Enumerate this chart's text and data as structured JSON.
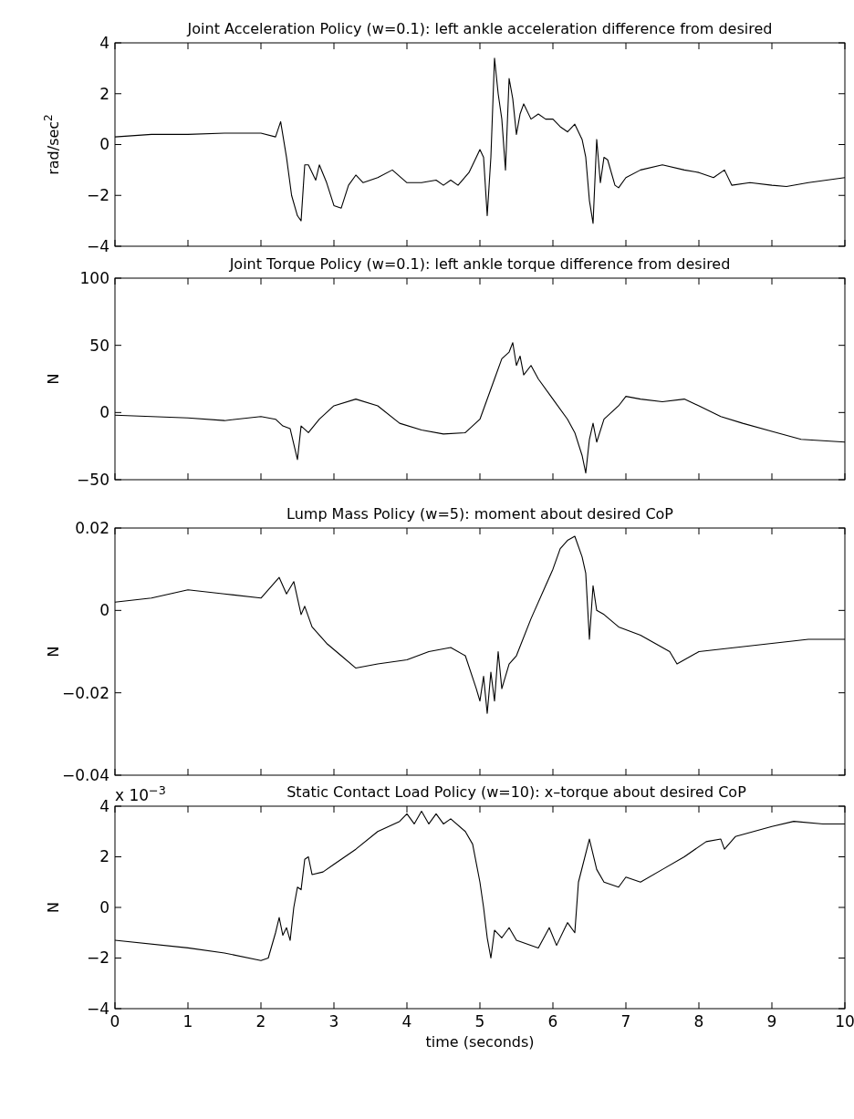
{
  "chart_data": [
    {
      "type": "line",
      "title": "Joint Acceleration Policy (w=0.1): left ankle acceleration difference from desired",
      "ylabel": "rad/sec$^{2}$",
      "xlim": [
        0,
        10
      ],
      "xticks": [
        0,
        1,
        2,
        3,
        4,
        5,
        6,
        7,
        8,
        9,
        10
      ],
      "ylim": [
        -4,
        4
      ],
      "yticks": [
        -4,
        -2,
        0,
        2,
        4
      ],
      "tick_labels": "y",
      "grid": false,
      "series": [
        {
          "color": "#000000",
          "x": [
            0,
            0.5,
            1,
            1.5,
            2,
            2.2,
            2.27,
            2.35,
            2.42,
            2.5,
            2.55,
            2.6,
            2.65,
            2.75,
            2.8,
            2.9,
            3,
            3.1,
            3.2,
            3.3,
            3.4,
            3.6,
            3.8,
            4,
            4.2,
            4.4,
            4.5,
            4.6,
            4.7,
            4.85,
            4.95,
            5,
            5.05,
            5.1,
            5.15,
            5.2,
            5.25,
            5.3,
            5.35,
            5.4,
            5.45,
            5.5,
            5.55,
            5.6,
            5.7,
            5.8,
            5.9,
            6,
            6.1,
            6.2,
            6.3,
            6.4,
            6.45,
            6.5,
            6.55,
            6.6,
            6.65,
            6.7,
            6.75,
            6.85,
            6.9,
            7,
            7.2,
            7.5,
            7.8,
            8,
            8.2,
            8.35,
            8.45,
            8.7,
            9,
            9.2,
            9.5,
            10
          ],
          "values": [
            0.3,
            0.4,
            0.4,
            0.45,
            0.45,
            0.3,
            0.9,
            -0.5,
            -2,
            -2.8,
            -3,
            -0.8,
            -0.8,
            -1.4,
            -0.8,
            -1.5,
            -2.4,
            -2.5,
            -1.6,
            -1.2,
            -1.5,
            -1.3,
            -1,
            -1.5,
            -1.5,
            -1.4,
            -1.6,
            -1.4,
            -1.6,
            -1.1,
            -0.5,
            -0.2,
            -0.5,
            -2.8,
            -0.5,
            3.4,
            2,
            1,
            -1,
            2.6,
            1.8,
            0.4,
            1.2,
            1.6,
            1,
            1.2,
            1,
            1,
            0.7,
            0.5,
            0.8,
            0.2,
            -0.5,
            -2.2,
            -3.1,
            0.2,
            -1.5,
            -0.5,
            -0.6,
            -1.6,
            -1.7,
            -1.3,
            -1,
            -0.8,
            -1,
            -1.1,
            -1.3,
            -1,
            -1.6,
            -1.5,
            -1.6,
            -1.65,
            -1.5,
            -1.3
          ]
        }
      ]
    },
    {
      "type": "line",
      "title": "Joint Torque Policy (w=0.1): left ankle torque difference from desired",
      "ylabel": "N",
      "xlim": [
        0,
        10
      ],
      "xticks": [
        0,
        1,
        2,
        3,
        4,
        5,
        6,
        7,
        8,
        9,
        10
      ],
      "ylim": [
        -50,
        100
      ],
      "yticks": [
        -50,
        0,
        50,
        100
      ],
      "tick_labels": "y",
      "grid": false,
      "series": [
        {
          "color": "#000000",
          "x": [
            0,
            1,
            1.5,
            2,
            2.2,
            2.3,
            2.4,
            2.5,
            2.55,
            2.65,
            2.8,
            3,
            3.3,
            3.6,
            3.9,
            4.2,
            4.5,
            4.8,
            5,
            5.2,
            5.3,
            5.4,
            5.45,
            5.5,
            5.55,
            5.6,
            5.7,
            5.8,
            6,
            6.2,
            6.3,
            6.4,
            6.45,
            6.5,
            6.55,
            6.6,
            6.7,
            6.9,
            7,
            7.2,
            7.5,
            7.8,
            8,
            8.3,
            8.6,
            9,
            9.4,
            10
          ],
          "values": [
            -2,
            -4,
            -6,
            -3,
            -5,
            -10,
            -12,
            -35,
            -10,
            -15,
            -5,
            5,
            10,
            5,
            -8,
            -13,
            -16,
            -15,
            -5,
            25,
            40,
            45,
            52,
            35,
            42,
            28,
            35,
            25,
            10,
            -5,
            -15,
            -32,
            -45,
            -20,
            -8,
            -22,
            -5,
            5,
            12,
            10,
            8,
            10,
            5,
            -3,
            -8,
            -14,
            -20,
            -22
          ]
        }
      ]
    },
    {
      "type": "line",
      "title": "Lump Mass Policy (w=5): moment about desired CoP",
      "ylabel": "N",
      "xlim": [
        0,
        10
      ],
      "xticks": [
        0,
        1,
        2,
        3,
        4,
        5,
        6,
        7,
        8,
        9,
        10
      ],
      "ylim": [
        -0.04,
        0.02
      ],
      "yticks": [
        -0.04,
        -0.02,
        0,
        0.02
      ],
      "tick_labels": "y",
      "grid": false,
      "series": [
        {
          "color": "#000000",
          "x": [
            0,
            0.5,
            1,
            1.5,
            2,
            2.25,
            2.35,
            2.45,
            2.55,
            2.6,
            2.7,
            2.9,
            3.1,
            3.3,
            3.6,
            4,
            4.3,
            4.6,
            4.8,
            4.95,
            5,
            5.05,
            5.1,
            5.15,
            5.2,
            5.25,
            5.3,
            5.4,
            5.5,
            5.7,
            5.9,
            6,
            6.1,
            6.2,
            6.3,
            6.4,
            6.45,
            6.5,
            6.55,
            6.6,
            6.7,
            6.9,
            7.2,
            7.4,
            7.6,
            7.7,
            8,
            8.5,
            9,
            9.5,
            10
          ],
          "values": [
            0.002,
            0.003,
            0.005,
            0.004,
            0.003,
            0.008,
            0.004,
            0.007,
            -0.001,
            0.001,
            -0.004,
            -0.008,
            -0.011,
            -0.014,
            -0.013,
            -0.012,
            -0.01,
            -0.009,
            -0.011,
            -0.019,
            -0.022,
            -0.016,
            -0.025,
            -0.015,
            -0.022,
            -0.01,
            -0.019,
            -0.013,
            -0.011,
            -0.002,
            0.006,
            0.01,
            0.015,
            0.017,
            0.018,
            0.013,
            0.009,
            -0.007,
            0.006,
            0,
            -0.001,
            -0.004,
            -0.006,
            -0.008,
            -0.01,
            -0.013,
            -0.01,
            -0.009,
            -0.008,
            -0.007,
            -0.007
          ]
        }
      ]
    },
    {
      "type": "line",
      "title": "Static Contact Load Policy (w=10): x–torque about desired CoP",
      "ylabel": "N",
      "xlabel": "time (seconds)",
      "annotations": [
        "x 10$^{−3}$"
      ],
      "xlim": [
        0,
        10
      ],
      "xticks": [
        0,
        1,
        2,
        3,
        4,
        5,
        6,
        7,
        8,
        9,
        10
      ],
      "ylim": [
        -4,
        4
      ],
      "yticks": [
        -4,
        -2,
        0,
        2,
        4
      ],
      "grid": false,
      "series": [
        {
          "color": "#000000",
          "x": [
            0,
            1,
            1.5,
            2,
            2.1,
            2.2,
            2.25,
            2.3,
            2.35,
            2.4,
            2.45,
            2.5,
            2.55,
            2.6,
            2.65,
            2.7,
            2.85,
            3,
            3.3,
            3.6,
            3.9,
            4,
            4.1,
            4.2,
            4.3,
            4.4,
            4.5,
            4.6,
            4.8,
            4.9,
            5,
            5.05,
            5.1,
            5.15,
            5.2,
            5.3,
            5.4,
            5.5,
            5.8,
            5.95,
            6.05,
            6.2,
            6.3,
            6.35,
            6.5,
            6.6,
            6.7,
            6.9,
            7,
            7.2,
            7.5,
            7.8,
            8.1,
            8.3,
            8.35,
            8.5,
            9,
            9.3,
            9.7,
            10
          ],
          "values": [
            -1.3,
            -1.6,
            -1.8,
            -2.1,
            -2,
            -1,
            -0.4,
            -1.1,
            -0.8,
            -1.3,
            0,
            0.8,
            0.7,
            1.9,
            2,
            1.3,
            1.4,
            1.7,
            2.3,
            3,
            3.4,
            3.7,
            3.3,
            3.8,
            3.3,
            3.7,
            3.3,
            3.5,
            3,
            2.5,
            1,
            0,
            -1.2,
            -2,
            -0.9,
            -1.2,
            -0.8,
            -1.3,
            -1.6,
            -0.8,
            -1.5,
            -0.6,
            -1,
            1,
            2.7,
            1.5,
            1,
            0.8,
            1.2,
            1,
            1.5,
            2,
            2.6,
            2.7,
            2.3,
            2.8,
            3.2,
            3.4,
            3.3,
            3.3
          ]
        }
      ]
    }
  ]
}
